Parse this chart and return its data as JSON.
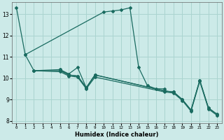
{
  "xlabel": "Humidex (Indice chaleur)",
  "bg_color": "#cceae8",
  "grid_color": "#aad4d0",
  "line_color": "#1a6b60",
  "line1_x": [
    0,
    1,
    10,
    11,
    12,
    13,
    14,
    15,
    16,
    17
  ],
  "line1_y": [
    13.3,
    11.1,
    13.1,
    13.15,
    13.2,
    13.3,
    10.5,
    9.65,
    9.5,
    9.5
  ],
  "line2_x": [
    2,
    5,
    6,
    7,
    8,
    9,
    17,
    18,
    19,
    20,
    21,
    22,
    23
  ],
  "line2_y": [
    10.35,
    10.4,
    10.15,
    10.1,
    9.55,
    10.15,
    9.4,
    9.35,
    9.0,
    8.5,
    9.9,
    8.6,
    8.3
  ],
  "line3_x": [
    2,
    5,
    6,
    7,
    8,
    9,
    17,
    18,
    19,
    20,
    21,
    22,
    23
  ],
  "line3_y": [
    10.35,
    10.3,
    10.1,
    10.05,
    9.5,
    10.05,
    9.35,
    9.3,
    8.95,
    8.45,
    9.85,
    8.55,
    8.25
  ],
  "line4_x": [
    1,
    2,
    5,
    6,
    7,
    8,
    9,
    17,
    18,
    19,
    20,
    21,
    22,
    23
  ],
  "line4_y": [
    11.1,
    10.35,
    10.35,
    10.15,
    10.1,
    9.55,
    10.15,
    9.4,
    9.35,
    9.0,
    8.5,
    9.9,
    8.6,
    8.3
  ],
  "line5_x": [
    5,
    6,
    7,
    8,
    9
  ],
  "line5_y": [
    10.4,
    10.2,
    10.5,
    9.55,
    10.15
  ],
  "xlim": [
    -0.5,
    23.5
  ],
  "ylim": [
    7.9,
    13.55
  ],
  "yticks": [
    8,
    9,
    10,
    11,
    12,
    13
  ],
  "xticks": [
    0,
    1,
    2,
    3,
    4,
    5,
    6,
    7,
    8,
    9,
    10,
    11,
    12,
    13,
    14,
    15,
    16,
    17,
    18,
    19,
    20,
    21,
    22,
    23
  ]
}
